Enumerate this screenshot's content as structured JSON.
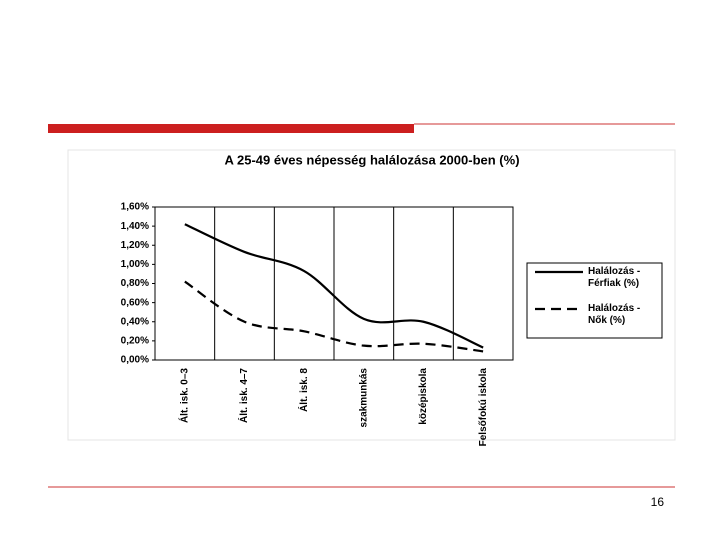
{
  "chart_data": {
    "type": "line",
    "title": "A 25-49 éves népesség halálozása 2000-ben (%)",
    "categories": [
      "Ált. isk. 0–3",
      "Ált. isk. 4–7",
      "Ált. isk. 8",
      "szakmunkás",
      "középiskola",
      "Felsőfokú iskola"
    ],
    "series": [
      {
        "name": "Halálozás - Férfiak (%)",
        "color": "#000000",
        "dash": "solid",
        "values": [
          1.42,
          1.13,
          0.93,
          0.43,
          0.4,
          0.13
        ]
      },
      {
        "name": "Halálozás - Nők (%)",
        "color": "#000000",
        "dash": "dashed",
        "values": [
          0.82,
          0.4,
          0.3,
          0.15,
          0.17,
          0.09
        ]
      }
    ],
    "ylim": [
      0,
      1.6
    ],
    "yticks": [
      {
        "value": 0,
        "label": "0,00%"
      },
      {
        "value": 0.2,
        "label": "0,20%"
      },
      {
        "value": 0.4,
        "label": "0,40%"
      },
      {
        "value": 0.6,
        "label": "0,60%"
      },
      {
        "value": 0.8,
        "label": "0,80%"
      },
      {
        "value": 1.0,
        "label": "1,00%"
      },
      {
        "value": 1.2,
        "label": "1,20%"
      },
      {
        "value": 1.4,
        "label": "1,40%"
      },
      {
        "value": 1.6,
        "label": "1,60%"
      }
    ],
    "grid": true,
    "legend": "right"
  },
  "slide": {
    "page_number": "16"
  }
}
